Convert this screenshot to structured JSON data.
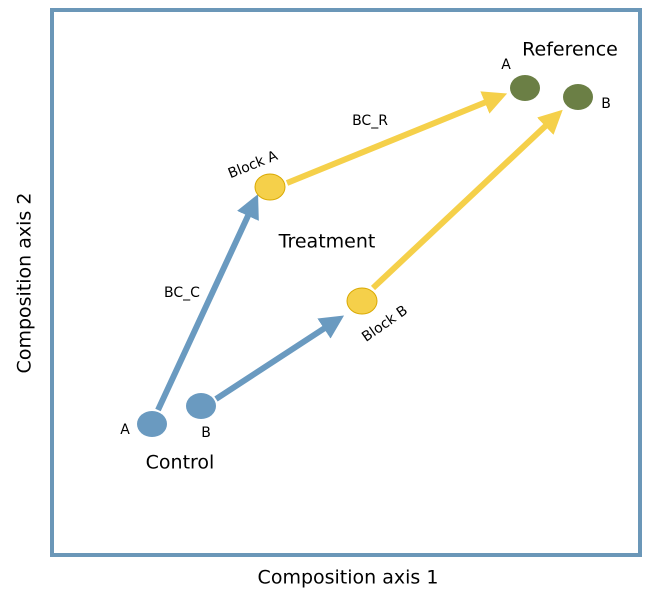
{
  "axes": {
    "x_label": "Composition axis 1",
    "y_label": "Composition axis 2"
  },
  "groups": {
    "control": "Control",
    "treatment": "Treatment",
    "reference": "Reference"
  },
  "points": {
    "control_a": "A",
    "control_b": "B",
    "block_a": "Block A",
    "block_b": "Block B",
    "reference_a": "A",
    "reference_b": "B"
  },
  "arrows": {
    "bc_c": "BC_C",
    "bc_r": "BC_R"
  }
}
